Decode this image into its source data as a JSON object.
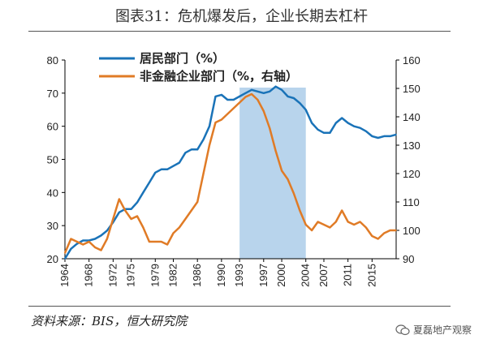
{
  "title": "图表31：危机爆发后，企业长期去杠杆",
  "source": "资料来源：BIS，恒大研究院",
  "watermark": "夏磊地产观察",
  "colors": {
    "household": "#1a73b8",
    "corporate": "#e07b26",
    "shade": "#b8d4ec",
    "axis": "#000000"
  },
  "chart_data": {
    "type": "line",
    "title": "",
    "shaded_period": [
      1993,
      2004
    ],
    "x_tick_labels": [
      "1964",
      "1968",
      "1972",
      "1975",
      "1979",
      "1982",
      "1986",
      "1990",
      "1993",
      "1997",
      "2000",
      "2004",
      "2007",
      "2011",
      "2015"
    ],
    "left_axis": {
      "range": [
        20,
        80
      ],
      "ticks": [
        "20",
        "30",
        "40",
        "50",
        "60",
        "70",
        "80"
      ]
    },
    "right_axis": {
      "range": [
        90,
        160
      ],
      "ticks": [
        "90",
        "100",
        "110",
        "120",
        "130",
        "140",
        "150",
        "160"
      ]
    },
    "x_range": [
      1964,
      2019
    ],
    "series": [
      {
        "name": "居民部门（%）",
        "axis": "left",
        "color": "#1a73b8",
        "points": [
          [
            1964,
            20
          ],
          [
            1965,
            23
          ],
          [
            1966,
            24.5
          ],
          [
            1967,
            25.5
          ],
          [
            1968,
            25.5
          ],
          [
            1969,
            26
          ],
          [
            1970,
            27
          ],
          [
            1971,
            28.5
          ],
          [
            1972,
            31
          ],
          [
            1973,
            34
          ],
          [
            1974,
            35
          ],
          [
            1975,
            35
          ],
          [
            1976,
            37
          ],
          [
            1977,
            40
          ],
          [
            1978,
            43
          ],
          [
            1979,
            46
          ],
          [
            1980,
            47
          ],
          [
            1981,
            47
          ],
          [
            1982,
            48
          ],
          [
            1983,
            49
          ],
          [
            1984,
            52
          ],
          [
            1985,
            53
          ],
          [
            1986,
            53
          ],
          [
            1987,
            56
          ],
          [
            1988,
            60
          ],
          [
            1989,
            69
          ],
          [
            1990,
            69.5
          ],
          [
            1991,
            68
          ],
          [
            1992,
            68
          ],
          [
            1993,
            69
          ],
          [
            1994,
            70
          ],
          [
            1995,
            71
          ],
          [
            1996,
            70.5
          ],
          [
            1997,
            70
          ],
          [
            1998,
            70.5
          ],
          [
            1999,
            72
          ],
          [
            2000,
            71
          ],
          [
            2001,
            69
          ],
          [
            2002,
            68.5
          ],
          [
            2003,
            67
          ],
          [
            2004,
            65
          ],
          [
            2005,
            61
          ],
          [
            2006,
            59
          ],
          [
            2007,
            58
          ],
          [
            2008,
            58
          ],
          [
            2009,
            61
          ],
          [
            2010,
            62.5
          ],
          [
            2011,
            61
          ],
          [
            2012,
            60
          ],
          [
            2013,
            59.5
          ],
          [
            2014,
            58.5
          ],
          [
            2015,
            57
          ],
          [
            2016,
            56.5
          ],
          [
            2017,
            57
          ],
          [
            2018,
            57
          ],
          [
            2019,
            57.5
          ]
        ]
      },
      {
        "name": "非金融企业部门（%，右轴）",
        "axis": "right",
        "color": "#e07b26",
        "points": [
          [
            1964,
            92
          ],
          [
            1965,
            97
          ],
          [
            1966,
            96
          ],
          [
            1967,
            95
          ],
          [
            1968,
            96
          ],
          [
            1969,
            94
          ],
          [
            1970,
            93
          ],
          [
            1971,
            97
          ],
          [
            1972,
            104
          ],
          [
            1973,
            111
          ],
          [
            1974,
            107
          ],
          [
            1975,
            104
          ],
          [
            1976,
            105
          ],
          [
            1977,
            101
          ],
          [
            1978,
            96
          ],
          [
            1979,
            96
          ],
          [
            1980,
            96
          ],
          [
            1981,
            95
          ],
          [
            1982,
            99
          ],
          [
            1983,
            101
          ],
          [
            1984,
            104
          ],
          [
            1985,
            107
          ],
          [
            1986,
            110
          ],
          [
            1987,
            120
          ],
          [
            1988,
            130
          ],
          [
            1989,
            138
          ],
          [
            1990,
            139
          ],
          [
            1991,
            141
          ],
          [
            1992,
            143
          ],
          [
            1993,
            145
          ],
          [
            1994,
            147
          ],
          [
            1995,
            148
          ],
          [
            1996,
            146
          ],
          [
            1997,
            142
          ],
          [
            1998,
            136
          ],
          [
            1999,
            128
          ],
          [
            2000,
            121
          ],
          [
            2001,
            118
          ],
          [
            2002,
            113
          ],
          [
            2003,
            107
          ],
          [
            2004,
            102
          ],
          [
            2005,
            100
          ],
          [
            2006,
            103
          ],
          [
            2007,
            102
          ],
          [
            2008,
            101
          ],
          [
            2009,
            103
          ],
          [
            2010,
            107
          ],
          [
            2011,
            103
          ],
          [
            2012,
            102
          ],
          [
            2013,
            103
          ],
          [
            2014,
            101
          ],
          [
            2015,
            98
          ],
          [
            2016,
            97
          ],
          [
            2017,
            99
          ],
          [
            2018,
            100
          ],
          [
            2019,
            100
          ]
        ]
      }
    ]
  }
}
